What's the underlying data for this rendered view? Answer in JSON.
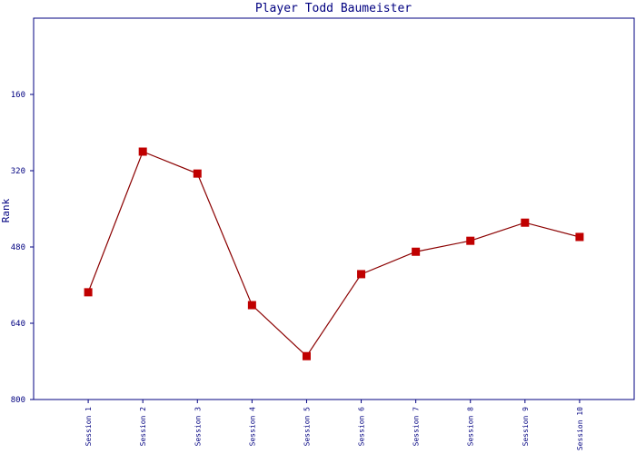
{
  "chart_data": {
    "type": "line",
    "title": "Player Todd Baumeister",
    "y_label": "Rank",
    "categories": [
      "Session 1",
      "Session 2",
      "Session 3",
      "Session 4",
      "Session 5",
      "Session 6",
      "Session 7",
      "Session 8",
      "Session 9",
      "Session 10"
    ],
    "series": [
      {
        "name": "Rank",
        "color": "#8b0000",
        "marker_color": "#c00000",
        "values": [
          575,
          280,
          326,
          602,
          709,
          537,
          490,
          467,
          429,
          459
        ]
      }
    ],
    "ylim": [
      0,
      800
    ],
    "yticks": [
      160,
      320,
      480,
      640,
      800
    ],
    "y_inverted": true,
    "grid": false,
    "legend": false
  }
}
